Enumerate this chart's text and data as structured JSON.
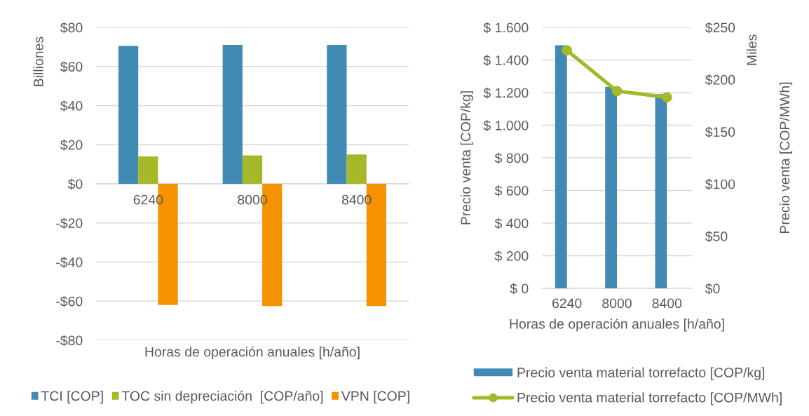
{
  "chart_data": [
    {
      "type": "bar",
      "categories": [
        "6240",
        "8000",
        "8400"
      ],
      "xlabel": "Horas de operación anuales [h/año]",
      "ylabel": "Billiones",
      "series": [
        {
          "name": "TCI [COP]",
          "color": "#418ab3",
          "values": [
            70.5,
            71,
            71
          ]
        },
        {
          "name": "TOC sin depreciación  [COP/año]",
          "color": "#a6b727",
          "values": [
            14,
            14.5,
            15
          ]
        },
        {
          "name": "VPN [COP]",
          "color": "#f69200",
          "values": [
            -62,
            -62.5,
            -62.5
          ]
        }
      ],
      "ylim": [
        -80,
        80
      ],
      "yticks": [
        {
          "value": -80,
          "label": "-$80"
        },
        {
          "value": -60,
          "label": "-$60"
        },
        {
          "value": -40,
          "label": "-$40"
        },
        {
          "value": -20,
          "label": "-$20"
        },
        {
          "value": 0,
          "label": "$0"
        },
        {
          "value": 20,
          "label": "$20"
        },
        {
          "value": 40,
          "label": "$40"
        },
        {
          "value": 60,
          "label": "$60"
        },
        {
          "value": 80,
          "label": "$80"
        }
      ],
      "grid": "y",
      "legend": "bottom"
    },
    {
      "type": "bar",
      "categories": [
        "6240",
        "8000",
        "8400"
      ],
      "xlabel": "Horas de operación anuales [h/año]",
      "ylabel": "Precio venta [COP/kg]",
      "y2label": "Precio venta [COP/MWh]",
      "annotations": [
        "Miles"
      ],
      "series": [
        {
          "name": "Precio venta material torrefacto [COP/kg]",
          "color": "#418ab3",
          "values": [
            1490,
            1235,
            1190
          ]
        },
        {
          "name": "Precio venta material torrefacto [COP/MWh]",
          "type": "line",
          "axis": "y2",
          "color": "#a6b727",
          "values": [
            228,
            189,
            183
          ]
        }
      ],
      "ylim": [
        0,
        1600
      ],
      "yticks": [
        {
          "value": 0,
          "label": "$ 0"
        },
        {
          "value": 200,
          "label": "$ 200"
        },
        {
          "value": 400,
          "label": "$ 400"
        },
        {
          "value": 600,
          "label": "$ 600"
        },
        {
          "value": 800,
          "label": "$ 800"
        },
        {
          "value": 1000,
          "label": "$ 1.000"
        },
        {
          "value": 1200,
          "label": "$ 1.200"
        },
        {
          "value": 1400,
          "label": "$ 1.400"
        },
        {
          "value": 1600,
          "label": "$ 1.600"
        }
      ],
      "y2lim": [
        0,
        250
      ],
      "y2ticks": [
        {
          "value": 0,
          "label": "$0"
        },
        {
          "value": 50,
          "label": "$50"
        },
        {
          "value": 100,
          "label": "$100"
        },
        {
          "value": 150,
          "label": "$150"
        },
        {
          "value": 200,
          "label": "$200"
        },
        {
          "value": 250,
          "label": "$250"
        }
      ],
      "grid": "y",
      "legend": "bottom",
      "marker": "circle"
    }
  ]
}
